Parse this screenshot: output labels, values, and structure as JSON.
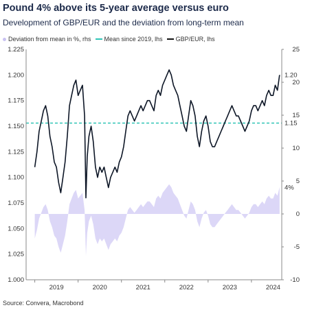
{
  "title": "Pound 4% above its 5-year average versus euro",
  "subtitle": "Development of GBP/EUR and the deviation from long-term mean",
  "legend": {
    "deviation": "Deviation from mean in %, rhs",
    "mean": "Mean since 2019, lhs",
    "gbpeur": "GBP/EUR, lhs"
  },
  "source": "Source: Convera, Macrobond",
  "colors": {
    "gbpeur": "#0d1626",
    "mean": "#2ec4b6",
    "deviation": "#d8d3f6",
    "annot_mean": "#2ec4b6",
    "annot_dev": "#a99be6"
  },
  "chart_data": {
    "type": "line",
    "title": "Pound 4% above its 5-year average versus euro",
    "x_tick_labels": [
      "2019",
      "2020",
      "2021",
      "2022",
      "2023",
      "2024"
    ],
    "left_axis": {
      "range": [
        1.0,
        1.225
      ],
      "ticks": [
        "1.000",
        "1.025",
        "1.050",
        "1.075",
        "1.100",
        "1.125",
        "1.150",
        "1.175",
        "1.200",
        "1.225"
      ]
    },
    "right_axis": {
      "range": [
        -10,
        25
      ],
      "ticks": [
        "-10",
        "-5",
        "0",
        "5",
        "10",
        "15",
        "20",
        "25"
      ]
    },
    "annotations": {
      "last_gbpeur": "1.20",
      "mean_value": "1.15",
      "last_deviation": "4%"
    },
    "mean_value": 1.153,
    "series": [
      {
        "name": "GBP/EUR, lhs",
        "axis": "left",
        "x": [
          2019.0,
          2019.05,
          2019.1,
          2019.15,
          2019.2,
          2019.25,
          2019.3,
          2019.35,
          2019.4,
          2019.45,
          2019.5,
          2019.55,
          2019.6,
          2019.65,
          2019.7,
          2019.75,
          2019.8,
          2019.85,
          2019.9,
          2019.95,
          2020.0,
          2020.05,
          2020.1,
          2020.15,
          2020.18,
          2020.21,
          2020.25,
          2020.3,
          2020.35,
          2020.4,
          2020.45,
          2020.5,
          2020.55,
          2020.6,
          2020.65,
          2020.7,
          2020.75,
          2020.8,
          2020.85,
          2020.9,
          2020.95,
          2021.0,
          2021.05,
          2021.1,
          2021.15,
          2021.2,
          2021.25,
          2021.3,
          2021.35,
          2021.4,
          2021.45,
          2021.5,
          2021.55,
          2021.6,
          2021.65,
          2021.7,
          2021.75,
          2021.8,
          2021.85,
          2021.9,
          2021.95,
          2022.0,
          2022.05,
          2022.1,
          2022.15,
          2022.2,
          2022.25,
          2022.3,
          2022.35,
          2022.4,
          2022.45,
          2022.5,
          2022.55,
          2022.6,
          2022.65,
          2022.7,
          2022.75,
          2022.8,
          2022.85,
          2022.9,
          2022.95,
          2023.0,
          2023.05,
          2023.1,
          2023.15,
          2023.2,
          2023.25,
          2023.3,
          2023.35,
          2023.4,
          2023.45,
          2023.5,
          2023.55,
          2023.6,
          2023.65,
          2023.7,
          2023.75,
          2023.8,
          2023.85,
          2023.9,
          2023.95,
          2024.0,
          2024.05,
          2024.1,
          2024.15,
          2024.2,
          2024.25,
          2024.3,
          2024.35,
          2024.4,
          2024.45,
          2024.5,
          2024.55,
          2024.6,
          2024.65
        ],
        "values": [
          1.11,
          1.125,
          1.145,
          1.155,
          1.165,
          1.17,
          1.16,
          1.14,
          1.13,
          1.115,
          1.11,
          1.095,
          1.085,
          1.1,
          1.115,
          1.14,
          1.17,
          1.18,
          1.19,
          1.195,
          1.18,
          1.185,
          1.19,
          1.16,
          1.08,
          1.12,
          1.14,
          1.15,
          1.135,
          1.11,
          1.1,
          1.11,
          1.105,
          1.11,
          1.1,
          1.09,
          1.1,
          1.105,
          1.11,
          1.105,
          1.115,
          1.12,
          1.13,
          1.145,
          1.16,
          1.165,
          1.16,
          1.155,
          1.16,
          1.165,
          1.17,
          1.165,
          1.17,
          1.175,
          1.175,
          1.17,
          1.165,
          1.18,
          1.185,
          1.18,
          1.19,
          1.195,
          1.2,
          1.205,
          1.2,
          1.19,
          1.185,
          1.18,
          1.17,
          1.16,
          1.15,
          1.145,
          1.16,
          1.175,
          1.17,
          1.16,
          1.14,
          1.13,
          1.145,
          1.155,
          1.16,
          1.15,
          1.135,
          1.13,
          1.13,
          1.135,
          1.14,
          1.145,
          1.15,
          1.155,
          1.16,
          1.165,
          1.17,
          1.165,
          1.16,
          1.16,
          1.155,
          1.15,
          1.145,
          1.15,
          1.155,
          1.165,
          1.17,
          1.17,
          1.165,
          1.17,
          1.175,
          1.17,
          1.18,
          1.185,
          1.18,
          1.18,
          1.19,
          1.185,
          1.2
        ]
      },
      {
        "name": "Mean since 2019, lhs",
        "axis": "left",
        "value": 1.153
      },
      {
        "name": "Deviation from mean in %, rhs",
        "axis": "right",
        "type": "area",
        "note": "derived from GBP/EUR as percent deviation from the mean"
      }
    ]
  }
}
